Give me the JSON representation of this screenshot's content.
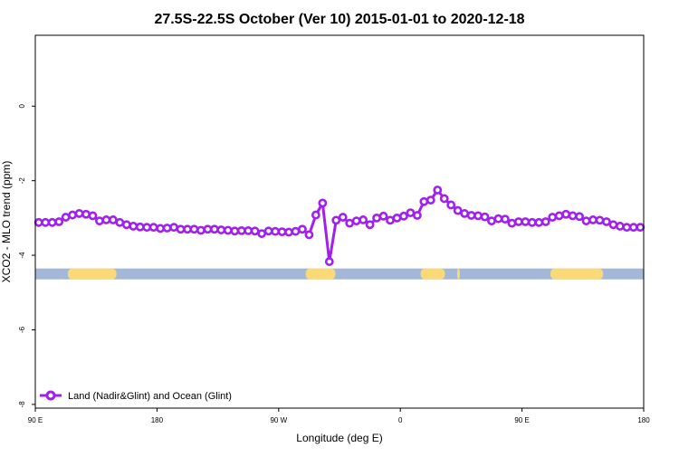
{
  "chart_data": {
    "type": "line",
    "title": "27.5S-22.5S October (Ver 10)   2015-01-01 to 2020-12-18",
    "xlabel": "Longitude (deg E)",
    "ylabel": "XCO2 - MLO trend (ppm)",
    "x_ticks": [
      {
        "value": 90,
        "label": "90 E"
      },
      {
        "value": 180,
        "label": "180"
      },
      {
        "value": 270,
        "label": "90 W"
      },
      {
        "value": 360,
        "label": "0"
      },
      {
        "value": 450,
        "label": "90 E"
      },
      {
        "value": 540,
        "label": "180"
      }
    ],
    "y_ticks": [
      {
        "value": -8,
        "label": "-8"
      },
      {
        "value": -6,
        "label": "-6"
      },
      {
        "value": -4,
        "label": "-4"
      },
      {
        "value": -2,
        "label": "-2"
      },
      {
        "value": 0,
        "label": "0"
      }
    ],
    "xlim": [
      90,
      540
    ],
    "ylim": [
      -8.1,
      1.9
    ],
    "grid": false,
    "legend_position": "bottom-left",
    "series": [
      {
        "name": "Land (Nadir&Glint) and Ocean (Glint)",
        "color": "#a020f0",
        "x": [
          92.5,
          97.5,
          102.5,
          107.5,
          112.5,
          117.5,
          122.5,
          127.5,
          132.5,
          137.5,
          142.5,
          147.5,
          152.5,
          157.5,
          162.5,
          167.5,
          172.5,
          177.5,
          182.5,
          187.5,
          192.5,
          197.5,
          202.5,
          207.5,
          212.5,
          217.5,
          222.5,
          227.5,
          232.5,
          237.5,
          242.5,
          247.5,
          252.5,
          257.5,
          262.5,
          267.5,
          272.5,
          277.5,
          282.5,
          287.5,
          292.5,
          297.5,
          302.5,
          307.5,
          312.5,
          317.5,
          322.5,
          327.5,
          332.5,
          337.5,
          342.5,
          347.5,
          352.5,
          357.5,
          362.5,
          367.5,
          372.5,
          377.5,
          382.5,
          387.5,
          392.5,
          397.5,
          402.5,
          407.5,
          412.5,
          417.5,
          422.5,
          427.5,
          432.5,
          437.5,
          442.5,
          447.5,
          452.5,
          457.5,
          462.5,
          467.5,
          472.5,
          477.5,
          482.5,
          487.5,
          492.5,
          497.5,
          502.5,
          507.5,
          512.5,
          517.5,
          522.5,
          527.5,
          532.5,
          537.5
        ],
        "y": [
          -3.12,
          -3.12,
          -3.12,
          -3.1,
          -2.98,
          -2.92,
          -2.88,
          -2.9,
          -2.94,
          -3.08,
          -3.05,
          -3.05,
          -3.12,
          -3.18,
          -3.22,
          -3.24,
          -3.25,
          -3.25,
          -3.28,
          -3.27,
          -3.25,
          -3.3,
          -3.3,
          -3.3,
          -3.33,
          -3.3,
          -3.3,
          -3.32,
          -3.33,
          -3.35,
          -3.34,
          -3.34,
          -3.35,
          -3.42,
          -3.35,
          -3.36,
          -3.37,
          -3.38,
          -3.36,
          -3.3,
          -3.45,
          -2.92,
          -2.6,
          -4.17,
          -3.06,
          -2.98,
          -3.14,
          -3.08,
          -3.05,
          -3.18,
          -3.0,
          -2.95,
          -3.06,
          -3.0,
          -2.95,
          -2.86,
          -2.93,
          -2.56,
          -2.52,
          -2.25,
          -2.48,
          -2.65,
          -2.8,
          -2.88,
          -2.93,
          -2.94,
          -2.97,
          -3.08,
          -3.02,
          -3.03,
          -3.14,
          -3.1,
          -3.1,
          -3.12,
          -3.12,
          -3.1,
          -2.98,
          -2.94,
          -2.9,
          -2.94,
          -2.96,
          -3.08,
          -3.05,
          -3.06,
          -3.1,
          -3.18,
          -3.22,
          -3.25,
          -3.25,
          -3.25
        ]
      }
    ],
    "surface_band": {
      "y_center": -4.5,
      "ocean_color": "#a3b8d8",
      "land_color": "#fcd977",
      "land_segments": [
        [
          114,
          150
        ],
        [
          290,
          312
        ],
        [
          375,
          393
        ],
        [
          402,
          404
        ],
        [
          471,
          510
        ]
      ]
    }
  }
}
